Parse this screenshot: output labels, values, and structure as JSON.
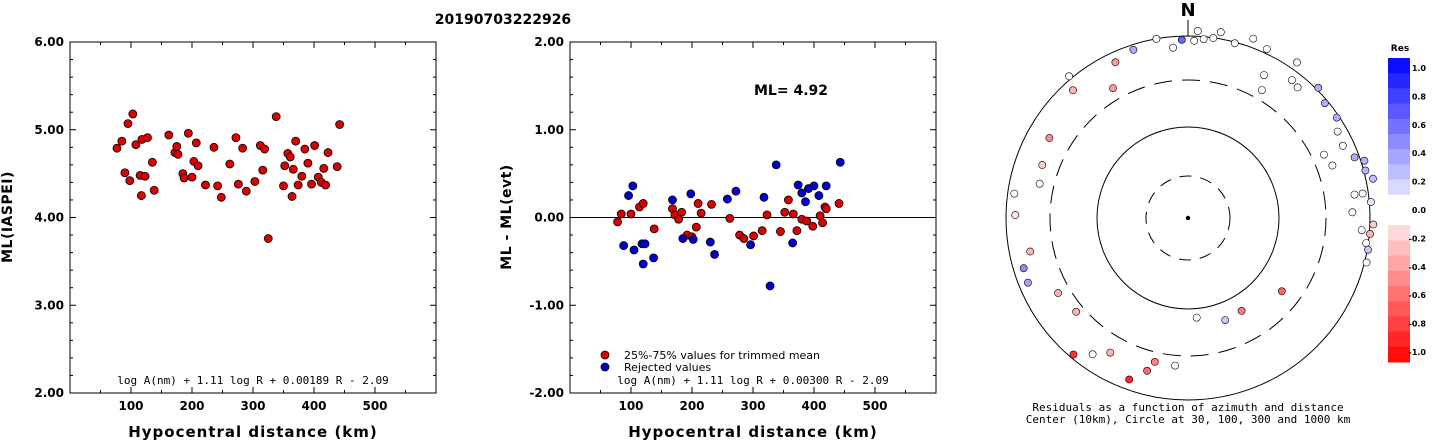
{
  "event_id": "20190703222926",
  "chart_data": [
    {
      "type": "scatter",
      "xlabel": "Hypocentral distance (km)",
      "ylabel": "ML(IASPEI)",
      "xlim": [
        0,
        600
      ],
      "ylim": [
        2.0,
        6.0
      ],
      "x_ticks": [
        "100",
        "200",
        "300",
        "400",
        "500"
      ],
      "y_ticks": [
        "2.00",
        "3.00",
        "4.00",
        "5.00",
        "6.00"
      ],
      "formula": "log A(nm) + 1.11 log R + 0.00189 R - 2.09",
      "point_color": "#dd0000",
      "points": [
        [
          77,
          4.79
        ],
        [
          85,
          4.87
        ],
        [
          90,
          4.51
        ],
        [
          95,
          5.07
        ],
        [
          98,
          4.42
        ],
        [
          103,
          5.18
        ],
        [
          108,
          4.83
        ],
        [
          115,
          4.48
        ],
        [
          117,
          4.25
        ],
        [
          118,
          4.89
        ],
        [
          123,
          4.47
        ],
        [
          127,
          4.91
        ],
        [
          135,
          4.63
        ],
        [
          138,
          4.31
        ],
        [
          162,
          4.94
        ],
        [
          172,
          4.74
        ],
        [
          175,
          4.81
        ],
        [
          177,
          4.72
        ],
        [
          185,
          4.5
        ],
        [
          187,
          4.45
        ],
        [
          194,
          4.96
        ],
        [
          200,
          4.46
        ],
        [
          203,
          4.64
        ],
        [
          207,
          4.85
        ],
        [
          210,
          4.59
        ],
        [
          222,
          4.37
        ],
        [
          236,
          4.8
        ],
        [
          242,
          4.36
        ],
        [
          248,
          4.23
        ],
        [
          262,
          4.61
        ],
        [
          272,
          4.91
        ],
        [
          276,
          4.38
        ],
        [
          283,
          4.79
        ],
        [
          289,
          4.3
        ],
        [
          303,
          4.41
        ],
        [
          312,
          4.82
        ],
        [
          316,
          4.54
        ],
        [
          319,
          4.78
        ],
        [
          325,
          3.76
        ],
        [
          338,
          5.15
        ],
        [
          350,
          4.36
        ],
        [
          352,
          4.59
        ],
        [
          357,
          4.73
        ],
        [
          361,
          4.69
        ],
        [
          364,
          4.24
        ],
        [
          366,
          4.55
        ],
        [
          370,
          4.87
        ],
        [
          374,
          4.37
        ],
        [
          380,
          4.47
        ],
        [
          385,
          4.78
        ],
        [
          390,
          4.62
        ],
        [
          396,
          4.38
        ],
        [
          401,
          4.82
        ],
        [
          407,
          4.46
        ],
        [
          412,
          4.4
        ],
        [
          416,
          4.56
        ],
        [
          419,
          4.37
        ],
        [
          423,
          4.74
        ],
        [
          438,
          4.58
        ],
        [
          442,
          5.06
        ]
      ]
    },
    {
      "type": "scatter",
      "xlabel": "Hypocentral distance (km)",
      "ylabel": "ML - ML(evt)",
      "xlim": [
        0,
        600
      ],
      "ylim": [
        -2.0,
        2.0
      ],
      "x_ticks": [
        "100",
        "200",
        "300",
        "400",
        "500"
      ],
      "y_ticks": [
        "-2.00",
        "-1.00",
        "0.00",
        "1.00",
        "2.00"
      ],
      "annotation": "ML= 4.92",
      "legend": [
        "25%-75% values for trimmed mean",
        "Rejected values"
      ],
      "formula": "log A(nm) + 1.11 log R + 0.00300 R - 2.09",
      "series": [
        {
          "name": "25%-75% values for trimmed mean",
          "color": "#dd0000",
          "points": [
            [
              78,
              -0.05
            ],
            [
              84,
              0.04
            ],
            [
              100,
              0.04
            ],
            [
              114,
              0.12
            ],
            [
              120,
              0.16
            ],
            [
              138,
              -0.13
            ],
            [
              168,
              0.1
            ],
            [
              172,
              0.03
            ],
            [
              178,
              -0.02
            ],
            [
              183,
              0.06
            ],
            [
              192,
              -0.2
            ],
            [
              200,
              -0.22
            ],
            [
              207,
              -0.11
            ],
            [
              210,
              0.16
            ],
            [
              215,
              0.05
            ],
            [
              232,
              0.15
            ],
            [
              262,
              -0.01
            ],
            [
              278,
              -0.2
            ],
            [
              285,
              -0.24
            ],
            [
              301,
              -0.21
            ],
            [
              315,
              -0.15
            ],
            [
              323,
              0.03
            ],
            [
              345,
              -0.16
            ],
            [
              352,
              0.06
            ],
            [
              358,
              0.2
            ],
            [
              366,
              0.04
            ],
            [
              372,
              -0.15
            ],
            [
              380,
              -0.02
            ],
            [
              388,
              -0.04
            ],
            [
              398,
              -0.1
            ],
            [
              410,
              0.02
            ],
            [
              414,
              -0.06
            ],
            [
              418,
              0.12
            ],
            [
              420,
              0.1
            ],
            [
              441,
              0.16
            ]
          ]
        },
        {
          "name": "Rejected values",
          "color": "#0000cc",
          "points": [
            [
              88,
              -0.32
            ],
            [
              96,
              0.25
            ],
            [
              103,
              0.36
            ],
            [
              105,
              -0.37
            ],
            [
              118,
              -0.3
            ],
            [
              120,
              -0.53
            ],
            [
              123,
              -0.3
            ],
            [
              137,
              -0.46
            ],
            [
              168,
              0.2
            ],
            [
              185,
              -0.24
            ],
            [
              198,
              0.27
            ],
            [
              202,
              -0.25
            ],
            [
              230,
              -0.28
            ],
            [
              237,
              -0.42
            ],
            [
              258,
              0.21
            ],
            [
              272,
              0.3
            ],
            [
              296,
              -0.31
            ],
            [
              318,
              0.23
            ],
            [
              328,
              -0.78
            ],
            [
              338,
              0.6
            ],
            [
              365,
              -0.29
            ],
            [
              374,
              0.37
            ],
            [
              380,
              0.28
            ],
            [
              386,
              0.18
            ],
            [
              391,
              0.33
            ],
            [
              400,
              0.36
            ],
            [
              408,
              0.25
            ],
            [
              420,
              0.36
            ],
            [
              443,
              0.63
            ]
          ]
        }
      ]
    },
    {
      "type": "scatter",
      "projection": "polar",
      "north_label": "N",
      "caption_line1": "Residuals as a function of azimuth and distance",
      "caption_line2": "Center (10km), Circle at 30, 100, 300 and 1000 km",
      "colorbar_title": "Res",
      "colorbar_ticks": [
        "1.0",
        "0.8",
        "0.6",
        "0.4",
        "0.2",
        "0.0",
        "-0.2",
        "-0.4",
        "-0.6",
        "-0.8",
        "-1.0"
      ],
      "points_az_dist_res": [
        [
          10,
          415,
          -0.03
        ],
        [
          20,
          420,
          -0.05
        ],
        [
          35,
          418,
          0.05
        ],
        [
          45,
          405,
          0.33
        ],
        [
          50,
          393,
          0.32
        ],
        [
          56,
          395,
          0.32
        ],
        [
          60,
          380,
          -0.05
        ],
        [
          65,
          376,
          0.06
        ],
        [
          70,
          338,
          -0.05
        ],
        [
          70,
          390,
          0.32
        ],
        [
          72,
          408,
          0.3
        ],
        [
          75,
          404,
          0.3
        ],
        [
          78,
          416,
          0.25
        ],
        [
          82,
          388,
          -0.03
        ],
        [
          85,
          404,
          0.1
        ],
        [
          92,
          408,
          -0.2
        ],
        [
          94,
          383,
          0.02
        ],
        [
          95,
          402,
          -0.3
        ],
        [
          98,
          396,
          0.02
        ],
        [
          100,
          402,
          0.22
        ],
        [
          104,
          405,
          -0.05
        ],
        [
          128,
          262,
          -0.6
        ],
        [
          150,
          236,
          -0.52
        ],
        [
          160,
          239,
          0.22
        ],
        [
          175,
          220,
          -0.05
        ],
        [
          185,
          326,
          -0.02
        ],
        [
          193,
          325,
          -0.5
        ],
        [
          195,
          348,
          -0.6
        ],
        [
          200,
          378,
          -0.85
        ],
        [
          210,
          342,
          -0.3
        ],
        [
          215,
          366,
          -0.05
        ],
        [
          220,
          392,
          -0.8
        ],
        [
          230,
          321,
          -0.3
        ],
        [
          240,
          330,
          -0.3
        ],
        [
          248,
          380,
          0.35
        ],
        [
          253,
          378,
          0.45
        ],
        [
          258,
          355,
          -0.3
        ],
        [
          271,
          380,
          -0.1
        ],
        [
          278,
          386,
          -0.02
        ],
        [
          283,
          335,
          -0.08
        ],
        [
          290,
          341,
          -0.2
        ],
        [
          300,
          352,
          -0.45
        ],
        [
          318,
          378,
          -0.3
        ],
        [
          320,
          407,
          -0.02
        ],
        [
          330,
          330,
          -0.4
        ],
        [
          335,
          378,
          -0.4
        ],
        [
          342,
          389,
          0.33
        ],
        [
          350,
          400,
          0.08
        ],
        [
          355,
          376,
          -0.02
        ],
        [
          362,
          390,
          0.02
        ],
        [
          358,
          392,
          0.6
        ],
        [
          5,
          395,
          0.02
        ],
        [
          8,
          400,
          -0.02
        ],
        [
          3,
          412,
          -0.05
        ],
        [
          15,
          398,
          0.02
        ],
        [
          28,
          356,
          -0.02
        ],
        [
          25,
          410,
          0.02
        ],
        [
          40,
          375,
          0.02
        ],
        [
          37,
          380,
          0.02
        ],
        [
          65,
          330,
          -0.05
        ],
        [
          82,
          370,
          -0.02
        ],
        [
          88,
          362,
          -0.02
        ],
        [
          30,
          325,
          0.02
        ]
      ]
    }
  ]
}
